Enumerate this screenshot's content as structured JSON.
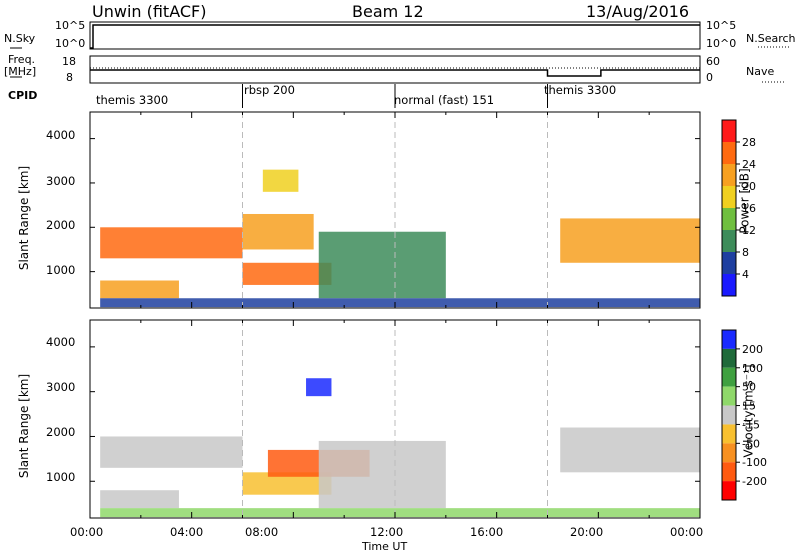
{
  "header": {
    "station": "Unwin (fitACF)",
    "beam": "Beam 12",
    "date": "13/Aug/2016"
  },
  "top_panel": {
    "nsky_label": "N.Sky",
    "nsky_ticks": [
      "10^5",
      "10^0"
    ],
    "nsearch_ticks": [
      "10^5",
      "10^0"
    ],
    "nsearch_label": "N.Search",
    "freq_label": "Freq.",
    "freq_unit": "[MHz]",
    "freq_ticks": [
      "18",
      "8"
    ],
    "nave_ticks": [
      "60",
      "0"
    ],
    "nave_label": "Nave",
    "cpid_label": "CPID",
    "cpid_segments": [
      {
        "label": "themis 3300",
        "start": 0,
        "end": 6
      },
      {
        "label": "rbsp 200",
        "start": 6,
        "end": 12
      },
      {
        "label": "normal (fast) 151",
        "start": 12,
        "end": 18
      },
      {
        "label": "themis 3300",
        "start": 18,
        "end": 24
      }
    ]
  },
  "chart_data": [
    {
      "type": "heatmap",
      "name": "power",
      "ylabel": "Slant Range [km]",
      "xlim": [
        0,
        24
      ],
      "ylim": [
        180,
        4600
      ],
      "yticks": [
        "1000",
        "2000",
        "3000",
        "4000"
      ],
      "colorbar": {
        "label": "Power [dB]",
        "ticks": [
          "4",
          "8",
          "12",
          "16",
          "20",
          "24",
          "28"
        ],
        "colors": [
          "#1a1aff",
          "#1e3fa0",
          "#3d8c5a",
          "#6fbf3f",
          "#f0d020",
          "#f7a020",
          "#ff6a10",
          "#ff1a1a"
        ]
      },
      "echo_regions": [
        {
          "t0": 0.4,
          "t1": 6.0,
          "r0": 1300,
          "r1": 2000,
          "level": 24
        },
        {
          "t0": 0.4,
          "t1": 3.5,
          "r0": 400,
          "r1": 800,
          "level": 20
        },
        {
          "t0": 6.0,
          "t1": 9.5,
          "r0": 700,
          "r1": 1200,
          "level": 24
        },
        {
          "t0": 6.0,
          "t1": 8.8,
          "r0": 1500,
          "r1": 2300,
          "level": 20
        },
        {
          "t0": 6.8,
          "t1": 8.2,
          "r0": 2800,
          "r1": 3300,
          "level": 16
        },
        {
          "t0": 9.0,
          "t1": 14.0,
          "r0": 400,
          "r1": 1900,
          "level": 10
        },
        {
          "t0": 18.5,
          "t1": 24.0,
          "r0": 1200,
          "r1": 2200,
          "level": 20
        },
        {
          "t0": 0.4,
          "t1": 24.0,
          "r0": 200,
          "r1": 400,
          "level": 6
        }
      ]
    },
    {
      "type": "heatmap",
      "name": "velocity",
      "xlabel": "Time UT",
      "ylabel": "Slant Range [km]",
      "xlim": [
        0,
        24
      ],
      "ylim": [
        180,
        4600
      ],
      "yticks": [
        "1000",
        "2000",
        "3000",
        "4000"
      ],
      "xticks": [
        "00:00",
        "04:00",
        "08:00",
        "12:00",
        "16:00",
        "20:00",
        "00:00"
      ],
      "colorbar": {
        "label": "Velocity [m s⁻¹]",
        "ticks": [
          "200",
          "100",
          "50",
          "15",
          "-15",
          "-50",
          "-100",
          "-200"
        ],
        "colors": [
          "#1a2aff",
          "#1f6a3a",
          "#3fa040",
          "#8fd86a",
          "#c8c8c8",
          "#f8c030",
          "#f79020",
          "#ff5a10",
          "#ff0000"
        ]
      },
      "echo_regions": [
        {
          "t0": 0.4,
          "t1": 6.0,
          "r0": 1300,
          "r1": 2000,
          "level": 0
        },
        {
          "t0": 0.4,
          "t1": 3.5,
          "r0": 400,
          "r1": 800,
          "level": 0
        },
        {
          "t0": 6.0,
          "t1": 9.5,
          "r0": 700,
          "r1": 1200,
          "level": -50
        },
        {
          "t0": 7.0,
          "t1": 11.0,
          "r0": 1100,
          "r1": 1700,
          "level": -200
        },
        {
          "t0": 8.5,
          "t1": 9.5,
          "r0": 2900,
          "r1": 3300,
          "level": 200
        },
        {
          "t0": 9.0,
          "t1": 14.0,
          "r0": 400,
          "r1": 1900,
          "level": 0
        },
        {
          "t0": 18.5,
          "t1": 24.0,
          "r0": 1200,
          "r1": 2200,
          "level": 0
        },
        {
          "t0": 0.4,
          "t1": 24.0,
          "r0": 200,
          "r1": 400,
          "level": 30
        }
      ]
    }
  ]
}
